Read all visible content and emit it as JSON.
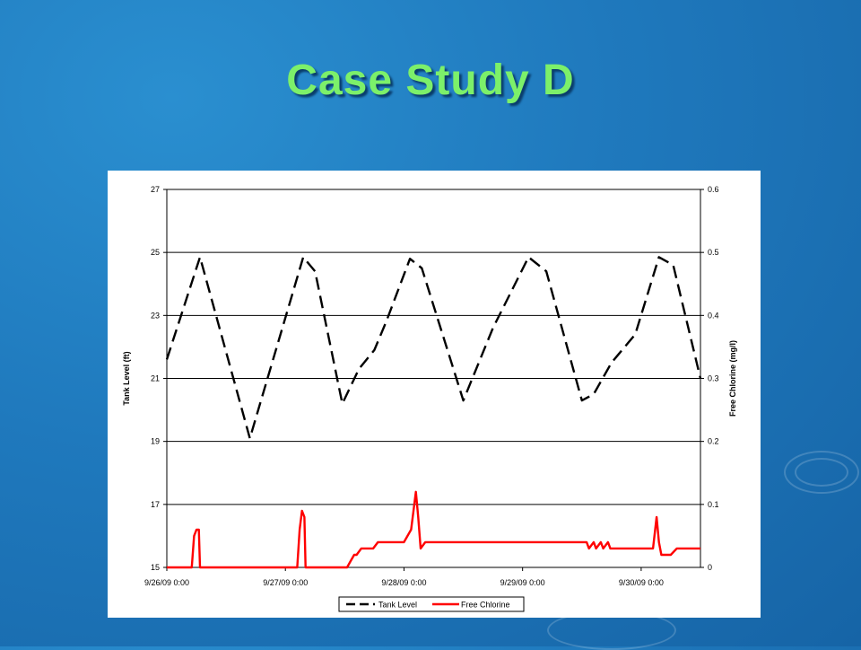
{
  "slide": {
    "title": "Case Study D"
  },
  "colors": {
    "tank_level": "#000000",
    "free_chlorine": "#ff0000",
    "title": "#7CF06A",
    "background": "#1f79bd"
  },
  "chart_data": {
    "type": "line",
    "x_ticks": [
      "9/26/09 0:00",
      "9/27/09 0:00",
      "9/28/09 0:00",
      "9/29/09 0:00",
      "9/30/09 0:00"
    ],
    "x_range": [
      0,
      4.5
    ],
    "y_left": {
      "label": "Tank Level (ft)",
      "range": [
        15,
        27
      ],
      "ticks": [
        "15",
        "17",
        "19",
        "21",
        "23",
        "25",
        "27"
      ]
    },
    "y_right": {
      "label": "Free Chlorine (mg/l)",
      "range": [
        0,
        0.6
      ],
      "ticks": [
        "0",
        "0.1",
        "0.2",
        "0.3",
        "0.4",
        "0.5",
        "0.6"
      ]
    },
    "grid": "horizontal",
    "legend_position": "bottom",
    "series": [
      {
        "name": "Tank Level",
        "axis": "left",
        "style": "dashed",
        "x": [
          0,
          0.28,
          0.7,
          1.15,
          1.25,
          1.48,
          1.62,
          1.75,
          1.85,
          2.05,
          2.15,
          2.5,
          2.75,
          3.05,
          3.2,
          3.5,
          3.6,
          3.75,
          3.95,
          4.15,
          4.27,
          4.5
        ],
        "y": [
          21.6,
          24.85,
          19.1,
          24.85,
          24.4,
          20.2,
          21.3,
          21.9,
          22.8,
          24.8,
          24.5,
          20.3,
          22.6,
          24.85,
          24.4,
          20.3,
          20.5,
          21.5,
          22.4,
          24.85,
          24.6,
          21.0
        ]
      },
      {
        "name": "Free Chlorine",
        "axis": "right",
        "style": "solid",
        "x": [
          0,
          0.21,
          0.23,
          0.25,
          0.27,
          0.28,
          0.29,
          1.1,
          1.12,
          1.14,
          1.16,
          1.17,
          1.52,
          1.55,
          1.58,
          1.6,
          1.64,
          1.68,
          1.74,
          1.78,
          1.8,
          1.85,
          2.0,
          2.06,
          2.1,
          2.12,
          2.14,
          2.18,
          3.0,
          3.1,
          3.54,
          3.56,
          3.6,
          3.62,
          3.66,
          3.68,
          3.72,
          3.74,
          3.8,
          4.1,
          4.13,
          4.15,
          4.17,
          4.25,
          4.3,
          4.5
        ],
        "y": [
          0,
          0,
          0.05,
          0.06,
          0.06,
          0.0,
          0,
          0,
          0.06,
          0.09,
          0.08,
          0.0,
          0,
          0.01,
          0.02,
          0.02,
          0.03,
          0.03,
          0.03,
          0.04,
          0.04,
          0.04,
          0.04,
          0.06,
          0.12,
          0.08,
          0.03,
          0.04,
          0.04,
          0.04,
          0.04,
          0.03,
          0.04,
          0.03,
          0.04,
          0.03,
          0.04,
          0.03,
          0.03,
          0.03,
          0.08,
          0.04,
          0.02,
          0.02,
          0.03,
          0.03
        ]
      }
    ]
  }
}
